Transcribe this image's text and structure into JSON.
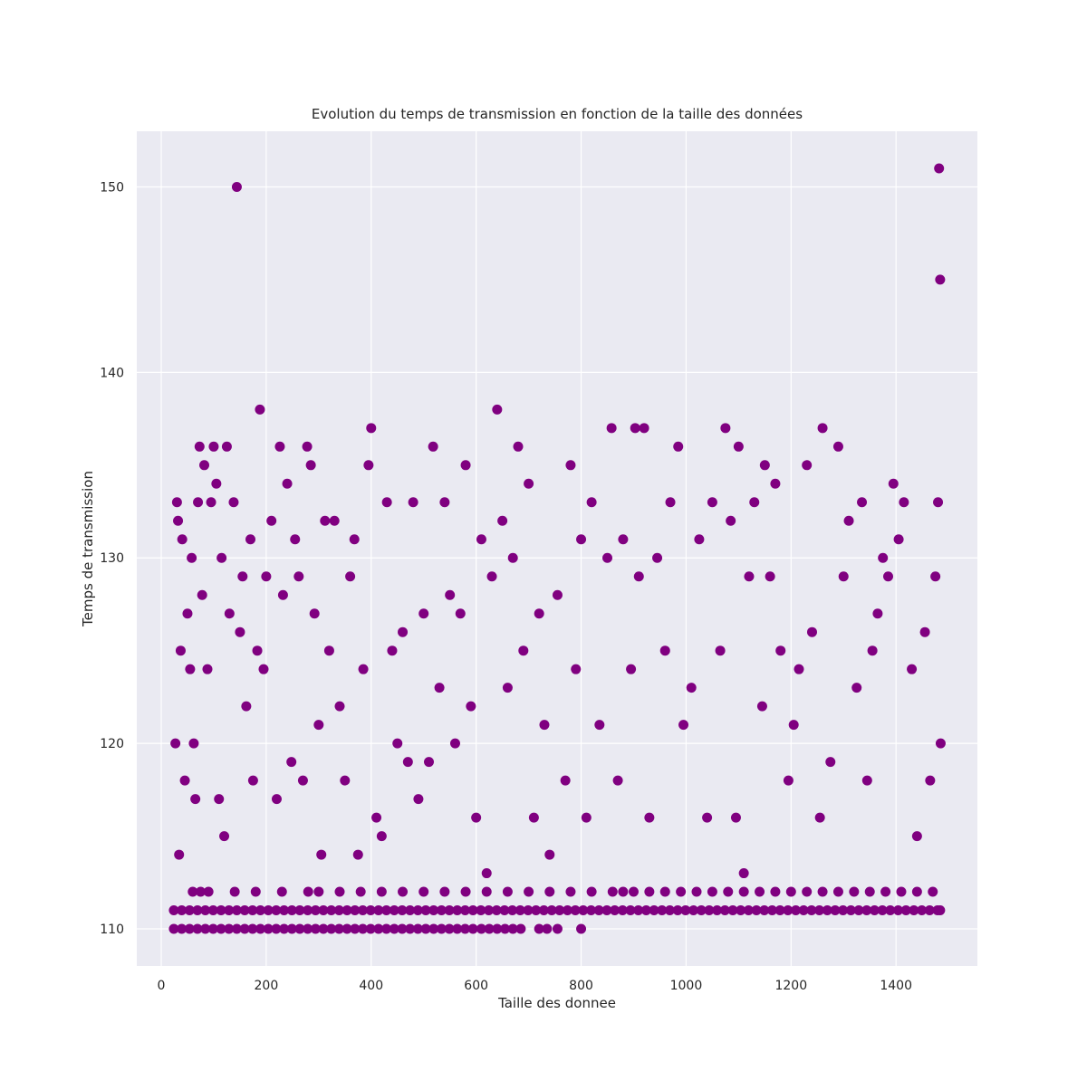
{
  "chart_data": {
    "type": "scatter",
    "title": "Evolution du temps de transmission en fonction de la taille des données",
    "x_label": "Taille des donnee",
    "y_label": "Temps de transmission",
    "color": "#800080",
    "grid": true,
    "xlim": [
      -46.6,
      1555
    ],
    "ylim": [
      108,
      153
    ],
    "xticks": [
      0,
      200,
      400,
      600,
      800,
      1000,
      1200,
      1400
    ],
    "yticks": [
      110,
      120,
      130,
      140,
      150
    ],
    "points": [
      [
        24,
        111
      ],
      [
        39,
        111
      ],
      [
        54,
        111
      ],
      [
        69,
        111
      ],
      [
        84,
        111
      ],
      [
        99,
        111
      ],
      [
        114,
        111
      ],
      [
        129,
        111
      ],
      [
        144,
        111
      ],
      [
        159,
        111
      ],
      [
        174,
        111
      ],
      [
        189,
        111
      ],
      [
        204,
        111
      ],
      [
        219,
        111
      ],
      [
        234,
        111
      ],
      [
        249,
        111
      ],
      [
        264,
        111
      ],
      [
        279,
        111
      ],
      [
        294,
        111
      ],
      [
        309,
        111
      ],
      [
        324,
        111
      ],
      [
        339,
        111
      ],
      [
        354,
        111
      ],
      [
        369,
        111
      ],
      [
        384,
        111
      ],
      [
        399,
        111
      ],
      [
        414,
        111
      ],
      [
        429,
        111
      ],
      [
        444,
        111
      ],
      [
        459,
        111
      ],
      [
        474,
        111
      ],
      [
        489,
        111
      ],
      [
        504,
        111
      ],
      [
        519,
        111
      ],
      [
        534,
        111
      ],
      [
        549,
        111
      ],
      [
        564,
        111
      ],
      [
        579,
        111
      ],
      [
        594,
        111
      ],
      [
        609,
        111
      ],
      [
        624,
        111
      ],
      [
        639,
        111
      ],
      [
        654,
        111
      ],
      [
        669,
        111
      ],
      [
        684,
        111
      ],
      [
        699,
        111
      ],
      [
        714,
        111
      ],
      [
        729,
        111
      ],
      [
        744,
        111
      ],
      [
        759,
        111
      ],
      [
        774,
        111
      ],
      [
        789,
        111
      ],
      [
        804,
        111
      ],
      [
        819,
        111
      ],
      [
        834,
        111
      ],
      [
        849,
        111
      ],
      [
        864,
        111
      ],
      [
        879,
        111
      ],
      [
        894,
        111
      ],
      [
        909,
        111
      ],
      [
        924,
        111
      ],
      [
        939,
        111
      ],
      [
        954,
        111
      ],
      [
        969,
        111
      ],
      [
        984,
        111
      ],
      [
        999,
        111
      ],
      [
        1014,
        111
      ],
      [
        1029,
        111
      ],
      [
        1044,
        111
      ],
      [
        1059,
        111
      ],
      [
        1074,
        111
      ],
      [
        1089,
        111
      ],
      [
        1104,
        111
      ],
      [
        1119,
        111
      ],
      [
        1134,
        111
      ],
      [
        1149,
        111
      ],
      [
        1164,
        111
      ],
      [
        1179,
        111
      ],
      [
        1194,
        111
      ],
      [
        1209,
        111
      ],
      [
        1224,
        111
      ],
      [
        1239,
        111
      ],
      [
        1254,
        111
      ],
      [
        1269,
        111
      ],
      [
        1284,
        111
      ],
      [
        1299,
        111
      ],
      [
        1314,
        111
      ],
      [
        1329,
        111
      ],
      [
        1344,
        111
      ],
      [
        1359,
        111
      ],
      [
        1374,
        111
      ],
      [
        1389,
        111
      ],
      [
        1404,
        111
      ],
      [
        1419,
        111
      ],
      [
        1434,
        111
      ],
      [
        1449,
        111
      ],
      [
        1464,
        111
      ],
      [
        1479,
        111
      ],
      [
        1484,
        111
      ],
      [
        24,
        110
      ],
      [
        39,
        110
      ],
      [
        54,
        110
      ],
      [
        69,
        110
      ],
      [
        84,
        110
      ],
      [
        99,
        110
      ],
      [
        114,
        110
      ],
      [
        129,
        110
      ],
      [
        144,
        110
      ],
      [
        159,
        110
      ],
      [
        174,
        110
      ],
      [
        189,
        110
      ],
      [
        204,
        110
      ],
      [
        219,
        110
      ],
      [
        234,
        110
      ],
      [
        249,
        110
      ],
      [
        264,
        110
      ],
      [
        279,
        110
      ],
      [
        294,
        110
      ],
      [
        309,
        110
      ],
      [
        324,
        110
      ],
      [
        339,
        110
      ],
      [
        354,
        110
      ],
      [
        369,
        110
      ],
      [
        384,
        110
      ],
      [
        399,
        110
      ],
      [
        414,
        110
      ],
      [
        429,
        110
      ],
      [
        444,
        110
      ],
      [
        459,
        110
      ],
      [
        474,
        110
      ],
      [
        489,
        110
      ],
      [
        504,
        110
      ],
      [
        519,
        110
      ],
      [
        534,
        110
      ],
      [
        549,
        110
      ],
      [
        564,
        110
      ],
      [
        579,
        110
      ],
      [
        594,
        110
      ],
      [
        610,
        110
      ],
      [
        625,
        110
      ],
      [
        640,
        110
      ],
      [
        655,
        110
      ],
      [
        670,
        110
      ],
      [
        685,
        110
      ],
      [
        720,
        110
      ],
      [
        735,
        110
      ],
      [
        755,
        110
      ],
      [
        800,
        110
      ],
      [
        60,
        112
      ],
      [
        75,
        112
      ],
      [
        90,
        112
      ],
      [
        140,
        112
      ],
      [
        180,
        112
      ],
      [
        230,
        112
      ],
      [
        280,
        112
      ],
      [
        300,
        112
      ],
      [
        340,
        112
      ],
      [
        380,
        112
      ],
      [
        420,
        112
      ],
      [
        460,
        112
      ],
      [
        500,
        112
      ],
      [
        540,
        112
      ],
      [
        580,
        112
      ],
      [
        620,
        112
      ],
      [
        660,
        112
      ],
      [
        700,
        112
      ],
      [
        740,
        112
      ],
      [
        780,
        112
      ],
      [
        820,
        112
      ],
      [
        860,
        112
      ],
      [
        880,
        112
      ],
      [
        900,
        112
      ],
      [
        930,
        112
      ],
      [
        960,
        112
      ],
      [
        990,
        112
      ],
      [
        1020,
        112
      ],
      [
        1050,
        112
      ],
      [
        1080,
        112
      ],
      [
        1110,
        112
      ],
      [
        1140,
        112
      ],
      [
        1170,
        112
      ],
      [
        1200,
        112
      ],
      [
        1230,
        112
      ],
      [
        1260,
        112
      ],
      [
        1290,
        112
      ],
      [
        1320,
        112
      ],
      [
        1350,
        112
      ],
      [
        1380,
        112
      ],
      [
        1410,
        112
      ],
      [
        1440,
        112
      ],
      [
        1470,
        112
      ],
      [
        27,
        120
      ],
      [
        30,
        133
      ],
      [
        32,
        132
      ],
      [
        34,
        114
      ],
      [
        37,
        125
      ],
      [
        40,
        131
      ],
      [
        45,
        118
      ],
      [
        50,
        127
      ],
      [
        55,
        124
      ],
      [
        58,
        130
      ],
      [
        62,
        120
      ],
      [
        65,
        117
      ],
      [
        70,
        133
      ],
      [
        73,
        136
      ],
      [
        78,
        128
      ],
      [
        82,
        135
      ],
      [
        88,
        124
      ],
      [
        95,
        133
      ],
      [
        100,
        136
      ],
      [
        105,
        134
      ],
      [
        110,
        117
      ],
      [
        115,
        130
      ],
      [
        120,
        115
      ],
      [
        125,
        136
      ],
      [
        130,
        127
      ],
      [
        138,
        133
      ],
      [
        144,
        150
      ],
      [
        150,
        126
      ],
      [
        155,
        129
      ],
      [
        162,
        122
      ],
      [
        170,
        131
      ],
      [
        175,
        118
      ],
      [
        183,
        125
      ],
      [
        188,
        138
      ],
      [
        195,
        124
      ],
      [
        200,
        129
      ],
      [
        210,
        132
      ],
      [
        220,
        117
      ],
      [
        226,
        136
      ],
      [
        232,
        128
      ],
      [
        240,
        134
      ],
      [
        248,
        119
      ],
      [
        255,
        131
      ],
      [
        262,
        129
      ],
      [
        270,
        118
      ],
      [
        278,
        136
      ],
      [
        285,
        135
      ],
      [
        292,
        127
      ],
      [
        300,
        121
      ],
      [
        305,
        114
      ],
      [
        312,
        132
      ],
      [
        320,
        125
      ],
      [
        330,
        132
      ],
      [
        340,
        122
      ],
      [
        350,
        118
      ],
      [
        360,
        129
      ],
      [
        368,
        131
      ],
      [
        375,
        114
      ],
      [
        385,
        124
      ],
      [
        395,
        135
      ],
      [
        400,
        137
      ],
      [
        410,
        116
      ],
      [
        420,
        115
      ],
      [
        430,
        133
      ],
      [
        440,
        125
      ],
      [
        450,
        120
      ],
      [
        460,
        126
      ],
      [
        470,
        119
      ],
      [
        480,
        133
      ],
      [
        490,
        117
      ],
      [
        500,
        127
      ],
      [
        510,
        119
      ],
      [
        518,
        136
      ],
      [
        530,
        123
      ],
      [
        540,
        133
      ],
      [
        550,
        128
      ],
      [
        560,
        120
      ],
      [
        570,
        127
      ],
      [
        580,
        135
      ],
      [
        590,
        122
      ],
      [
        600,
        116
      ],
      [
        610,
        131
      ],
      [
        620,
        113
      ],
      [
        630,
        129
      ],
      [
        640,
        138
      ],
      [
        650,
        132
      ],
      [
        660,
        123
      ],
      [
        670,
        130
      ],
      [
        680,
        136
      ],
      [
        690,
        125
      ],
      [
        700,
        134
      ],
      [
        710,
        116
      ],
      [
        720,
        127
      ],
      [
        730,
        121
      ],
      [
        740,
        114
      ],
      [
        755,
        128
      ],
      [
        770,
        118
      ],
      [
        780,
        135
      ],
      [
        790,
        124
      ],
      [
        800,
        131
      ],
      [
        810,
        116
      ],
      [
        820,
        133
      ],
      [
        835,
        121
      ],
      [
        850,
        130
      ],
      [
        858,
        137
      ],
      [
        870,
        118
      ],
      [
        880,
        131
      ],
      [
        895,
        124
      ],
      [
        903,
        137
      ],
      [
        910,
        129
      ],
      [
        920,
        137
      ],
      [
        930,
        116
      ],
      [
        945,
        130
      ],
      [
        960,
        125
      ],
      [
        970,
        133
      ],
      [
        985,
        136
      ],
      [
        995,
        121
      ],
      [
        1010,
        123
      ],
      [
        1025,
        131
      ],
      [
        1040,
        116
      ],
      [
        1050,
        133
      ],
      [
        1065,
        125
      ],
      [
        1075,
        137
      ],
      [
        1085,
        132
      ],
      [
        1095,
        116
      ],
      [
        1100,
        136
      ],
      [
        1110,
        113
      ],
      [
        1120,
        129
      ],
      [
        1130,
        133
      ],
      [
        1145,
        122
      ],
      [
        1150,
        135
      ],
      [
        1160,
        129
      ],
      [
        1170,
        134
      ],
      [
        1180,
        125
      ],
      [
        1195,
        118
      ],
      [
        1205,
        121
      ],
      [
        1215,
        124
      ],
      [
        1230,
        135
      ],
      [
        1240,
        126
      ],
      [
        1255,
        116
      ],
      [
        1260,
        137
      ],
      [
        1275,
        119
      ],
      [
        1290,
        136
      ],
      [
        1300,
        129
      ],
      [
        1310,
        132
      ],
      [
        1325,
        123
      ],
      [
        1335,
        133
      ],
      [
        1345,
        118
      ],
      [
        1355,
        125
      ],
      [
        1365,
        127
      ],
      [
        1375,
        130
      ],
      [
        1385,
        129
      ],
      [
        1395,
        134
      ],
      [
        1405,
        131
      ],
      [
        1415,
        133
      ],
      [
        1430,
        124
      ],
      [
        1440,
        115
      ],
      [
        1455,
        126
      ],
      [
        1465,
        118
      ],
      [
        1475,
        129
      ],
      [
        1480,
        133
      ],
      [
        1482,
        151
      ],
      [
        1484,
        145
      ],
      [
        1485,
        120
      ]
    ]
  }
}
